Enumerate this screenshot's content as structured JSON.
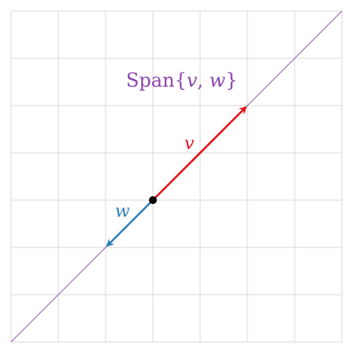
{
  "labels": {
    "span_prefix": "Span{",
    "span_v": "v",
    "span_sep": ", ",
    "span_w": "w",
    "span_suffix": "}",
    "v": "v",
    "w": "w"
  },
  "colors": {
    "grid": "#d9d9d9",
    "span_line": "#9b59b6",
    "span_text": "#8e44ad",
    "v": "#e0141b",
    "w": "#2f7fb8",
    "origin": "#000000"
  },
  "vectors": {
    "v": [
      2,
      2
    ],
    "w": [
      -1,
      -1
    ]
  }
}
